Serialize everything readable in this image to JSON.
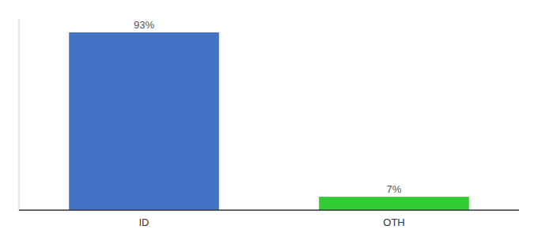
{
  "chart_data": {
    "type": "bar",
    "categories": [
      "ID",
      "OTH"
    ],
    "values": [
      93,
      7
    ],
    "value_labels": [
      "93%",
      "7%"
    ],
    "colors": [
      "#4472c4",
      "#33cc33"
    ],
    "ylim": [
      0,
      100
    ],
    "data_labels": true,
    "tick_labels": "x"
  }
}
